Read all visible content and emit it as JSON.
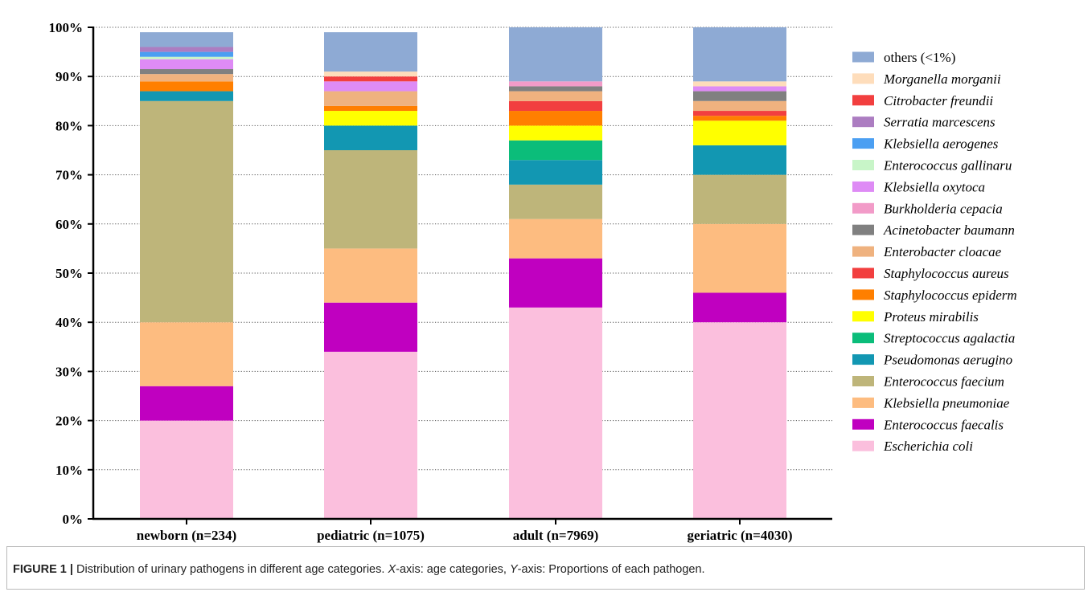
{
  "chart_data": {
    "type": "bar",
    "stacked": true,
    "orientation": "vertical",
    "categories": [
      "newborn (n=234)",
      "pediatric (n=1075)",
      "adult (n=7969)",
      "geriatric (n=4030)"
    ],
    "y_ticks": [
      "0%",
      "10%",
      "20%",
      "30%",
      "40%",
      "50%",
      "60%",
      "70%",
      "80%",
      "90%",
      "100%"
    ],
    "ylim": [
      0,
      100
    ],
    "grid": "horizontal dotted",
    "legend_position": "right",
    "series": [
      {
        "name": "Escherichia coli",
        "color": "#FBBFDD",
        "italic": true,
        "values": [
          20,
          34,
          43,
          40
        ]
      },
      {
        "name": "Enterococcus faecalis",
        "color": "#C000C0",
        "italic": true,
        "values": [
          7,
          10,
          10,
          6
        ]
      },
      {
        "name": "Klebsiella pneumoniae",
        "color": "#FDBC80",
        "italic": true,
        "values": [
          13,
          11,
          8,
          14
        ]
      },
      {
        "name": "Enterococcus faecium",
        "color": "#BEB57A",
        "italic": true,
        "values": [
          45,
          20,
          7,
          10
        ]
      },
      {
        "name": "Pseudomonas aerugino",
        "color": "#1297B2",
        "italic": true,
        "values": [
          2,
          5,
          5,
          6
        ]
      },
      {
        "name": "Streptococcus agalactia",
        "color": "#0BBD7A",
        "italic": true,
        "values": [
          0,
          0,
          4,
          0
        ]
      },
      {
        "name": "Proteus mirabilis",
        "color": "#FFFF00",
        "italic": true,
        "values": [
          0,
          3,
          3,
          5
        ]
      },
      {
        "name": "Staphylococcus epiderm",
        "color": "#FF7F00",
        "italic": true,
        "values": [
          2,
          1,
          3,
          1
        ]
      },
      {
        "name": "Staphylococcus aureus",
        "color": "#F23F3F",
        "italic": true,
        "values": [
          0,
          0,
          2,
          1
        ]
      },
      {
        "name": "Enterobacter cloacae",
        "color": "#EFB27F",
        "italic": true,
        "values": [
          1.5,
          3,
          2,
          2
        ]
      },
      {
        "name": "Acinetobacter baumann",
        "color": "#808080",
        "italic": true,
        "values": [
          1,
          0,
          1,
          2
        ]
      },
      {
        "name": "Burkholderia cepacia",
        "color": "#F29BC8",
        "italic": true,
        "values": [
          0,
          0,
          1,
          0
        ]
      },
      {
        "name": "Klebsiella oxytoca",
        "color": "#DE8BF5",
        "italic": true,
        "values": [
          2,
          2,
          0,
          1
        ]
      },
      {
        "name": "Enterococcus gallinaru",
        "color": "#C8F5C8",
        "italic": true,
        "values": [
          0.5,
          0,
          0,
          0
        ]
      },
      {
        "name": "Klebsiella aerogenes",
        "color": "#4B9FF2",
        "italic": true,
        "values": [
          1,
          0,
          0,
          0
        ]
      },
      {
        "name": "Serratia marcescens",
        "color": "#AC7DC1",
        "italic": true,
        "values": [
          1,
          0,
          0,
          0
        ]
      },
      {
        "name": "Citrobacter freundii",
        "color": "#F23F3F",
        "italic": true,
        "values": [
          0,
          1,
          0,
          0
        ]
      },
      {
        "name": "Morganella morganii",
        "color": "#FEDDBB",
        "italic": true,
        "values": [
          0,
          1,
          0,
          1
        ]
      },
      {
        "name": "others (<1%)",
        "color": "#8EAAD4",
        "italic": false,
        "values": [
          3,
          8,
          11,
          11
        ]
      }
    ]
  },
  "caption": {
    "label": "FIGURE 1 |",
    "parts": [
      {
        "text": " Distribution of urinary pathogens in different age categories. ",
        "italic": false
      },
      {
        "text": "X",
        "italic": true
      },
      {
        "text": "-axis: age categories, ",
        "italic": false
      },
      {
        "text": "Y",
        "italic": true
      },
      {
        "text": "-axis: Proportions of each pathogen.",
        "italic": false
      }
    ]
  }
}
